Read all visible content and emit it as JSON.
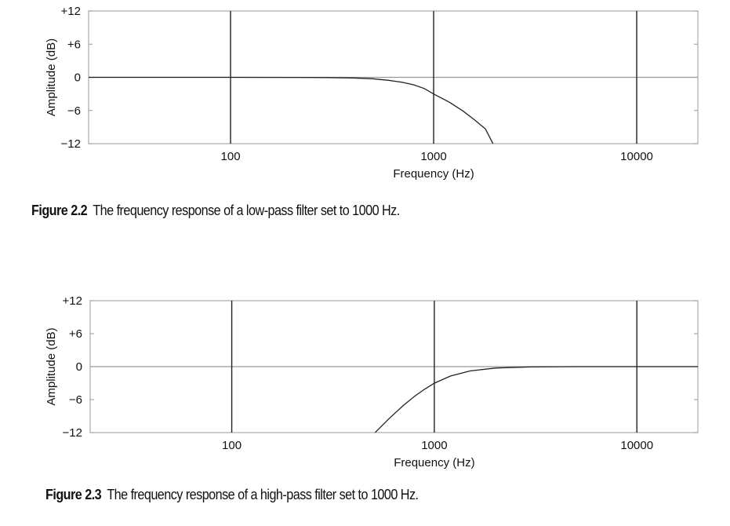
{
  "chart_data": [
    {
      "type": "line",
      "xscale": "log",
      "xlim": [
        20,
        20000
      ],
      "ylim": [
        -12,
        12
      ],
      "xticks": [
        100,
        1000,
        10000
      ],
      "xtick_labels": [
        "100",
        "1000",
        "10000"
      ],
      "yticks": [
        12,
        6,
        0,
        -6,
        -12
      ],
      "ytick_labels": [
        "+12",
        "+6",
        "0",
        "−6",
        "−12"
      ],
      "xlabel": "Frequency (Hz)",
      "ylabel": "Amplitude (dB)",
      "grid": "vertical lines at decades, horizontal line at 0 dB",
      "line_color": "#222222",
      "series": [
        {
          "x": [
            20,
            100,
            200,
            300,
            400,
            500,
            600,
            700,
            800,
            900,
            1000,
            1200,
            1400,
            1600,
            1800,
            1960
          ],
          "y": [
            0,
            0,
            -0.01,
            -0.04,
            -0.11,
            -0.26,
            -0.54,
            -0.89,
            -1.36,
            -2.03,
            -3.01,
            -4.53,
            -6.14,
            -7.77,
            -9.34,
            -11.98
          ]
        }
      ],
      "caption": {
        "label": "Figure 2.2",
        "text": "The frequency response of a low-pass filter set to 1000 Hz."
      }
    },
    {
      "type": "line",
      "xscale": "log",
      "xlim": [
        20,
        20000
      ],
      "ylim": [
        -12,
        12
      ],
      "xticks": [
        100,
        1000,
        10000
      ],
      "xtick_labels": [
        "100",
        "1000",
        "10000"
      ],
      "yticks": [
        12,
        6,
        0,
        -6,
        -12
      ],
      "ytick_labels": [
        "+12",
        "+6",
        "0",
        "−6",
        "−12"
      ],
      "xlabel": "Frequency (Hz)",
      "ylabel": "Amplitude (dB)",
      "grid": "vertical lines at decades, horizontal line at 0 dB",
      "line_color": "#222222",
      "series": [
        {
          "x": [
            510,
            600,
            700,
            800,
            900,
            1000,
            1200,
            1500,
            2000,
            3000,
            5000,
            10000,
            20000
          ],
          "y": [
            -11.98,
            -9.4,
            -7.13,
            -5.37,
            -4.05,
            -3.01,
            -1.72,
            -0.78,
            -0.26,
            -0.05,
            0,
            0,
            0
          ]
        }
      ],
      "caption": {
        "label": "Figure 2.3",
        "text": "The frequency response of a high-pass filter set to 1000 Hz."
      }
    }
  ]
}
